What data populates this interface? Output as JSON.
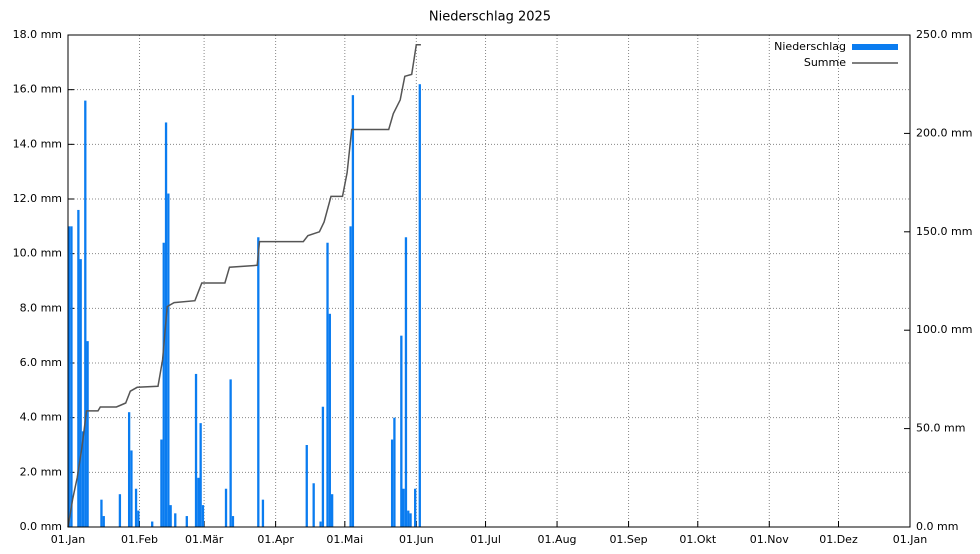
{
  "chart_data": {
    "type": "bar",
    "title": "Niederschlag 2025",
    "legend": "upper right",
    "grid": true,
    "xlim": [
      "2025-01-01",
      "2026-01-01"
    ],
    "xticks": [
      {
        "value": "2025-01-01",
        "label": "01.Jan"
      },
      {
        "value": "2025-02-01",
        "label": "01.Feb"
      },
      {
        "value": "2025-03-01",
        "label": "01.Mär"
      },
      {
        "value": "2025-04-01",
        "label": "01.Apr"
      },
      {
        "value": "2025-05-01",
        "label": "01.Mai"
      },
      {
        "value": "2025-06-01",
        "label": "01.Jun"
      },
      {
        "value": "2025-07-01",
        "label": "01.Jul"
      },
      {
        "value": "2025-08-01",
        "label": "01.Aug"
      },
      {
        "value": "2025-09-01",
        "label": "01.Sep"
      },
      {
        "value": "2025-10-01",
        "label": "01.Okt"
      },
      {
        "value": "2025-11-01",
        "label": "01.Nov"
      },
      {
        "value": "2025-12-01",
        "label": "01.Dez"
      },
      {
        "value": "2026-01-01",
        "label": "01.Jan"
      }
    ],
    "ylim": [
      0,
      18
    ],
    "yticks": [
      {
        "value": 0,
        "label": "0.0 mm"
      },
      {
        "value": 2,
        "label": "2.0 mm"
      },
      {
        "value": 4,
        "label": "4.0 mm"
      },
      {
        "value": 6,
        "label": "6.0 mm"
      },
      {
        "value": 8,
        "label": "8.0 mm"
      },
      {
        "value": 10,
        "label": "10.0 mm"
      },
      {
        "value": 12,
        "label": "12.0 mm"
      },
      {
        "value": 14,
        "label": "14.0 mm"
      },
      {
        "value": 16,
        "label": "16.0 mm"
      },
      {
        "value": 18,
        "label": "18.0 mm"
      }
    ],
    "y2lim": [
      0,
      250
    ],
    "y2ticks": [
      {
        "value": 0,
        "label": "0.0 mm"
      },
      {
        "value": 50,
        "label": "50.0 mm"
      },
      {
        "value": 100,
        "label": "100.0 mm"
      },
      {
        "value": 150,
        "label": "150.0 mm"
      },
      {
        "value": 200,
        "label": "200.0 mm"
      },
      {
        "value": 250,
        "label": "250.0 mm"
      }
    ],
    "series": [
      {
        "name": "Niederschlag",
        "color": "#0a7cf0",
        "type": "bar",
        "x": [
          "2025-01-01",
          "2025-01-02",
          "2025-01-05",
          "2025-01-06",
          "2025-01-07",
          "2025-01-08",
          "2025-01-09",
          "2025-01-15",
          "2025-01-16",
          "2025-01-23",
          "2025-01-27",
          "2025-01-28",
          "2025-01-30",
          "2025-01-31",
          "2025-02-06",
          "2025-02-10",
          "2025-02-11",
          "2025-02-12",
          "2025-02-13",
          "2025-02-14",
          "2025-02-16",
          "2025-02-21",
          "2025-02-25",
          "2025-02-26",
          "2025-02-27",
          "2025-02-28",
          "2025-03-10",
          "2025-03-12",
          "2025-03-13",
          "2025-03-24",
          "2025-03-26",
          "2025-04-14",
          "2025-04-17",
          "2025-04-20",
          "2025-04-21",
          "2025-04-23",
          "2025-04-24",
          "2025-04-25",
          "2025-05-03",
          "2025-05-04",
          "2025-05-21",
          "2025-05-22",
          "2025-05-25",
          "2025-05-26",
          "2025-05-27",
          "2025-05-28",
          "2025-05-29",
          "2025-05-31",
          "2025-06-02"
        ],
        "values": [
          11.0,
          11.0,
          11.6,
          9.8,
          3.5,
          15.6,
          6.8,
          1.0,
          0.4,
          1.2,
          4.2,
          2.8,
          1.4,
          0.6,
          0.2,
          3.2,
          10.4,
          14.8,
          12.2,
          0.8,
          0.5,
          0.4,
          5.6,
          1.8,
          3.8,
          0.8,
          1.4,
          5.4,
          0.4,
          10.6,
          1.0,
          3.0,
          1.6,
          0.2,
          4.4,
          10.4,
          7.8,
          1.2,
          11.0,
          15.8,
          3.2,
          4.0,
          7.0,
          1.4,
          10.6,
          0.6,
          0.5,
          1.4,
          16.2
        ]
      },
      {
        "name": "Summe",
        "color": "#555555",
        "type": "line",
        "axis": "y2",
        "x": [
          "2025-01-01",
          "2025-01-03",
          "2025-01-05",
          "2025-01-07",
          "2025-01-09",
          "2025-01-14",
          "2025-01-15",
          "2025-01-22",
          "2025-01-24",
          "2025-01-26",
          "2025-01-28",
          "2025-01-31",
          "2025-02-09",
          "2025-02-11",
          "2025-02-13",
          "2025-02-16",
          "2025-02-25",
          "2025-02-28",
          "2025-03-10",
          "2025-03-12",
          "2025-03-24",
          "2025-03-25",
          "2025-04-13",
          "2025-04-15",
          "2025-04-20",
          "2025-04-22",
          "2025-04-25",
          "2025-04-30",
          "2025-05-02",
          "2025-05-04",
          "2025-05-20",
          "2025-05-22",
          "2025-05-25",
          "2025-05-27",
          "2025-05-30",
          "2025-06-01",
          "2025-06-03"
        ],
        "values": [
          0,
          14,
          25,
          40,
          59,
          59,
          61,
          61,
          62,
          63,
          69,
          71,
          71.5,
          85,
          112,
          114,
          115,
          124,
          124,
          132,
          133,
          145,
          145,
          148,
          150,
          155,
          168,
          168,
          180,
          202,
          202,
          210,
          217,
          229,
          230,
          245,
          245
        ]
      }
    ]
  }
}
